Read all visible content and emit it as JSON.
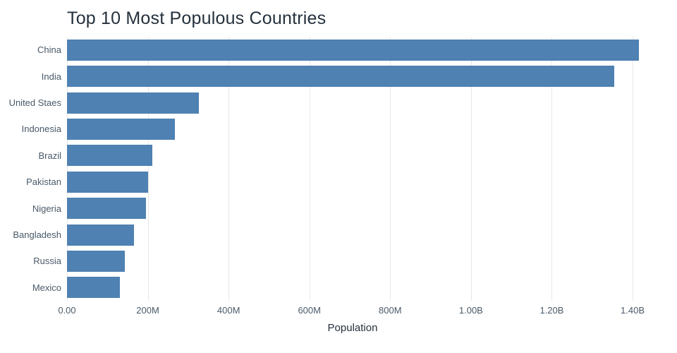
{
  "chart": {
    "title": "Top 10 Most Populous Countries",
    "xlabel": "Population"
  },
  "chart_data": {
    "type": "bar",
    "orientation": "horizontal",
    "title": "Top 10 Most Populous Countries",
    "xlabel": "Population",
    "ylabel": "",
    "categories": [
      "China",
      "India",
      "United Staes",
      "Indonesia",
      "Brazil",
      "Pakistan",
      "Nigeria",
      "Bangladesh",
      "Russia",
      "Mexico"
    ],
    "values": [
      1415000000,
      1354000000,
      327000000,
      267000000,
      211000000,
      201000000,
      196000000,
      166000000,
      144000000,
      131000000
    ],
    "xlim": [
      0,
      1475000000
    ],
    "xticks": {
      "values": [
        0,
        200000000,
        400000000,
        600000000,
        800000000,
        1000000000,
        1200000000,
        1400000000
      ],
      "labels": [
        "0.00",
        "200M",
        "400M",
        "600M",
        "800M",
        "1.00B",
        "1.20B",
        "1.40B"
      ]
    },
    "grid": true,
    "legend": "none",
    "colors": {
      "bar": "#4f81b2",
      "grid": "#e8e8e8",
      "axis_text": "#4a5a68",
      "title_text": "#25313d",
      "background": "#ffffff"
    }
  }
}
